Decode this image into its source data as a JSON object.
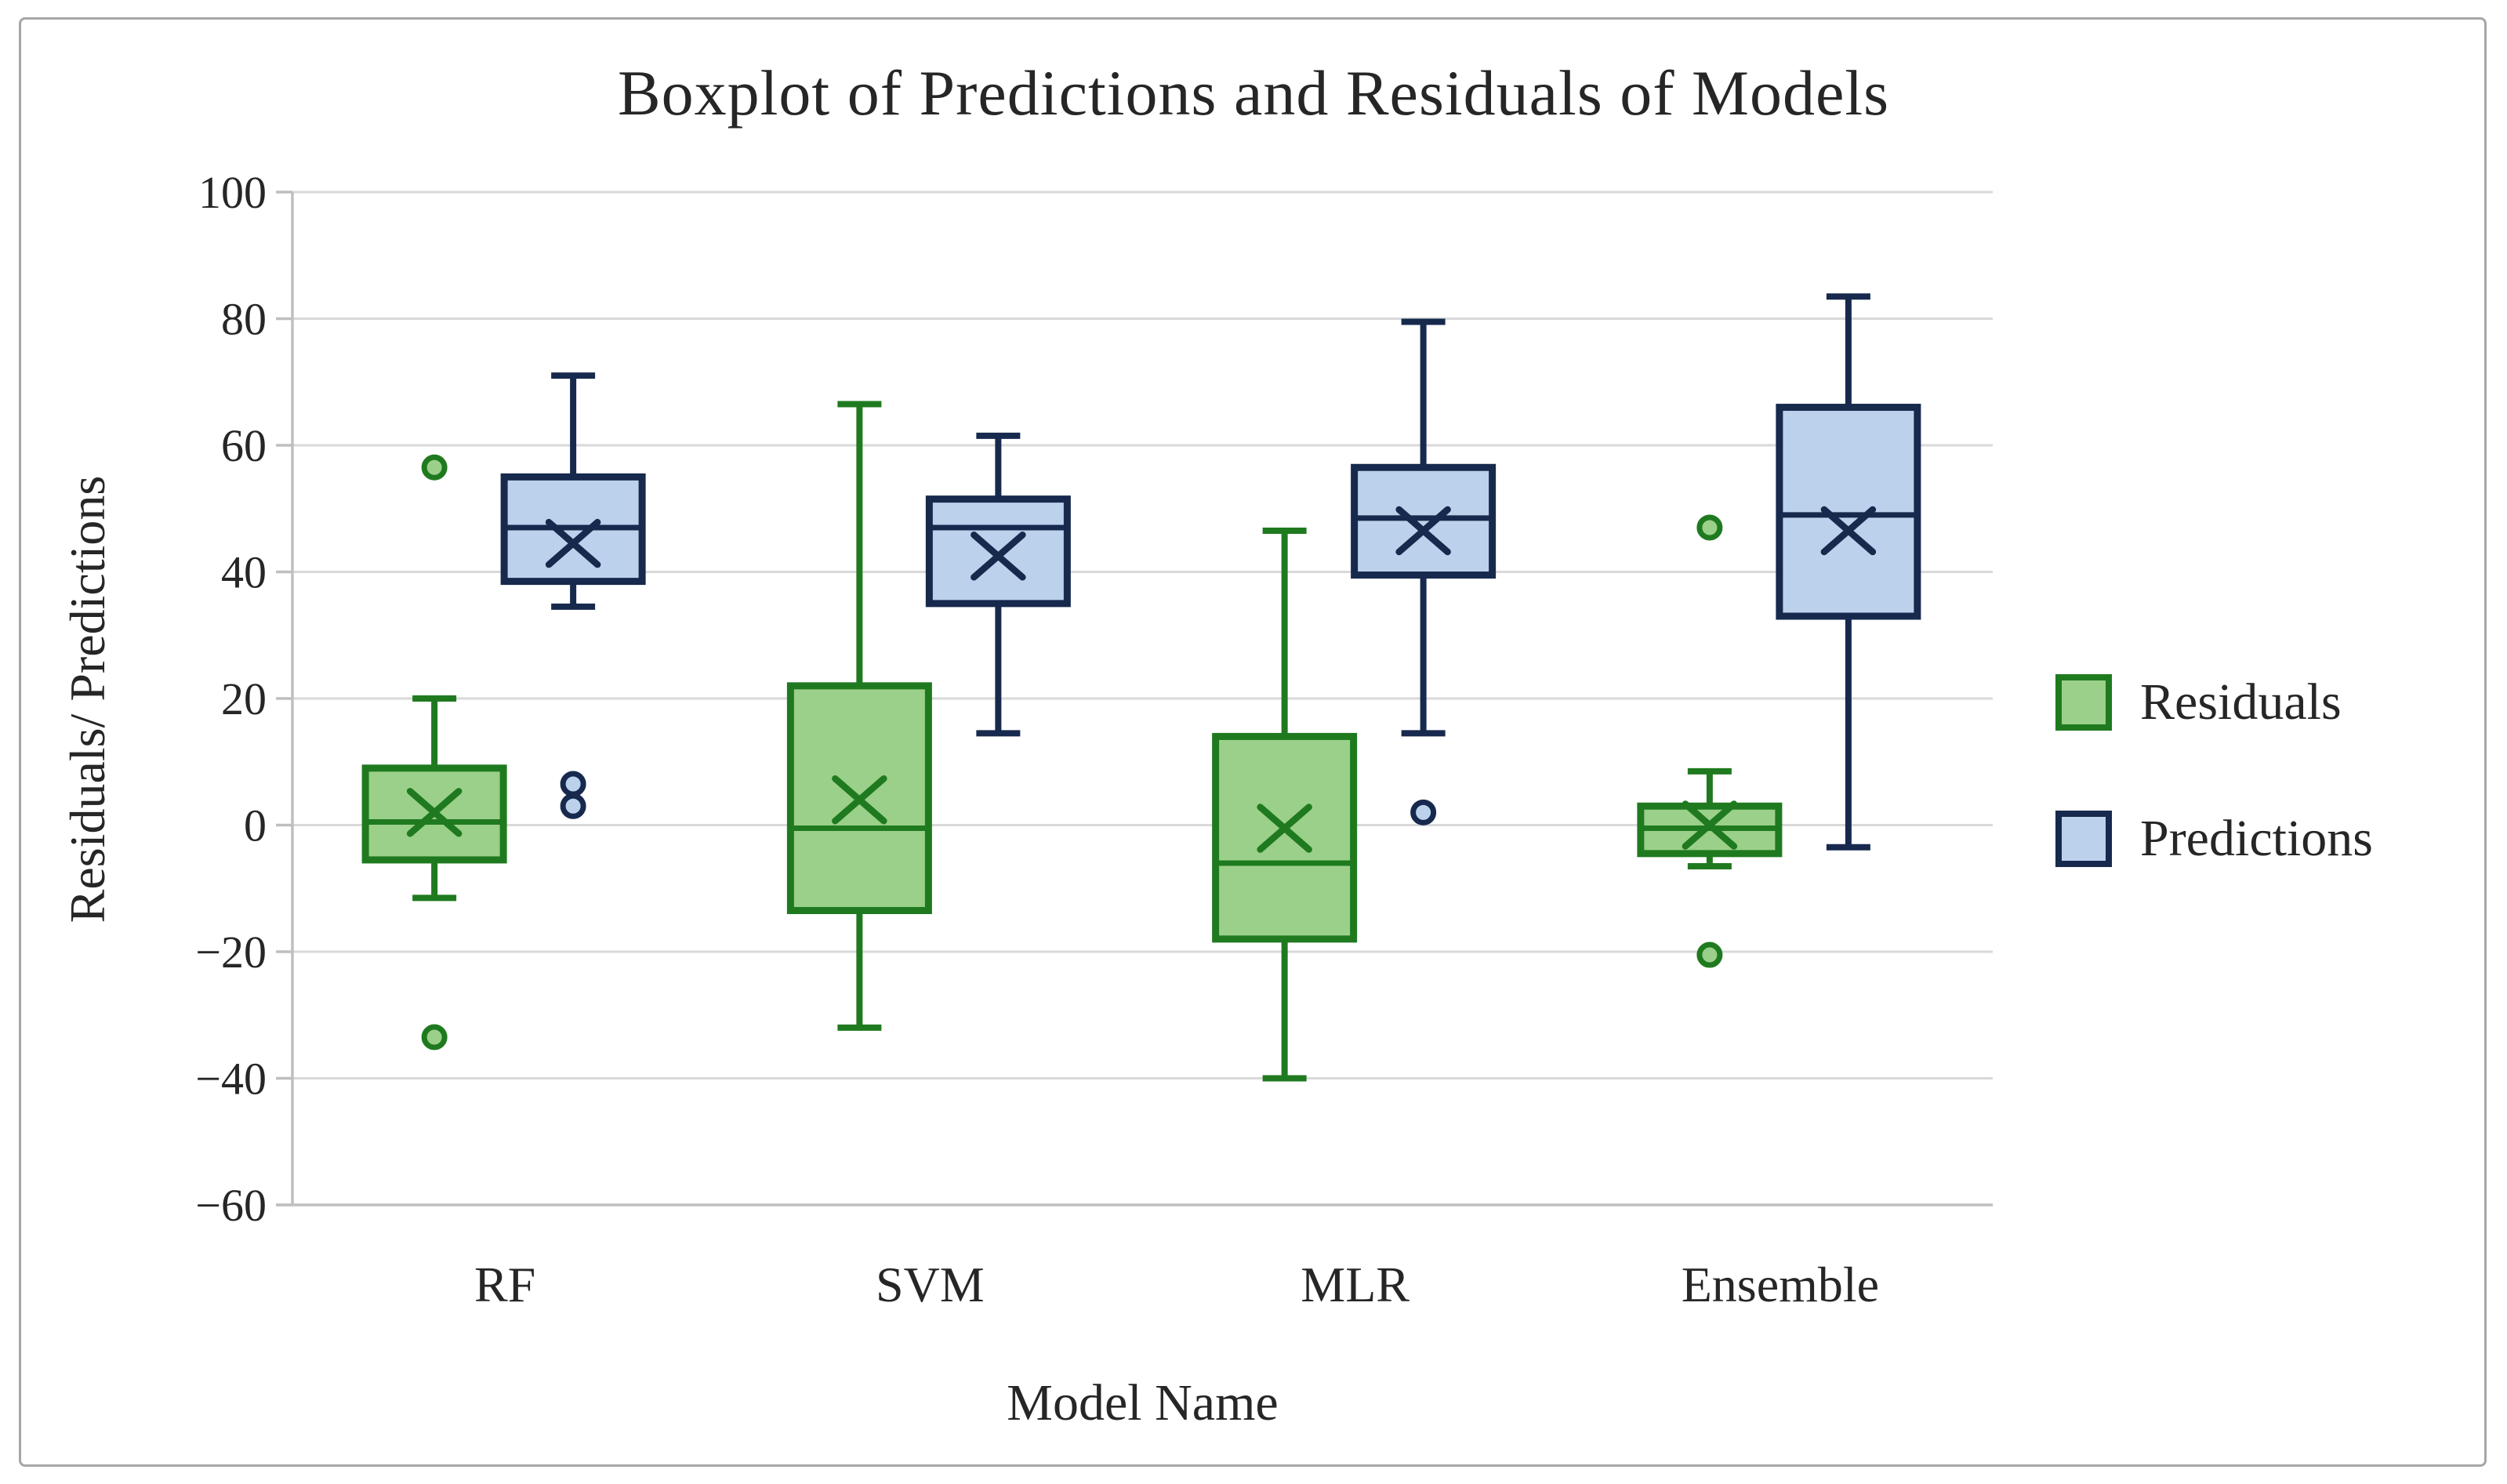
{
  "window": {
    "background": "#ffffff",
    "frame_color": "#a6a6a6"
  },
  "chart_data": {
    "type": "boxplot",
    "title": "Boxplot of Predictions and Residuals of Models",
    "xlabel": "Model Name",
    "ylabel": "Residuals/ Predictions",
    "categories": [
      "RF",
      "SVM",
      "MLR",
      "Ensemble"
    ],
    "y_axis": {
      "min": -60,
      "max": 100,
      "tick_step": 20,
      "ticks": [
        100,
        80,
        60,
        40,
        20,
        0,
        -20,
        -40,
        -60
      ]
    },
    "grid": true,
    "legend": {
      "position": "right",
      "entries": [
        "Residuals",
        "Predictions"
      ]
    },
    "colors": {
      "grid": "#d9d9d9",
      "axis": "#bfbfbf",
      "text": "#262626",
      "residuals_fill": "#9bd08a",
      "residuals_stroke": "#1f7a1f",
      "predictions_fill": "#bcd2ec",
      "predictions_stroke": "#17294d"
    },
    "series": [
      {
        "name": "Residuals",
        "fill": "#9bd08a",
        "stroke": "#1f7a1f",
        "boxes": [
          {
            "category": "RF",
            "whisker_low": -11.5,
            "q1": -5.5,
            "median": 0.5,
            "mean": 2,
            "q3": 9,
            "whisker_high": 20,
            "outliers": [
              56.5,
              -33.5
            ]
          },
          {
            "category": "SVM",
            "whisker_low": -32,
            "q1": -13.5,
            "median": -0.5,
            "mean": 4,
            "q3": 22,
            "whisker_high": 66.5,
            "outliers": []
          },
          {
            "category": "MLR",
            "whisker_low": -40,
            "q1": -18,
            "median": -6,
            "mean": -0.5,
            "q3": 14,
            "whisker_high": 46.5,
            "outliers": []
          },
          {
            "category": "Ensemble",
            "whisker_low": -6.5,
            "q1": -4.5,
            "median": -0.5,
            "mean": 0,
            "q3": 3,
            "whisker_high": 8.5,
            "outliers": [
              47,
              -20.5
            ]
          }
        ]
      },
      {
        "name": "Predictions",
        "fill": "#bcd2ec",
        "stroke": "#17294d",
        "boxes": [
          {
            "category": "RF",
            "whisker_low": 34.5,
            "q1": 38.5,
            "median": 47,
            "mean": 44.5,
            "q3": 55,
            "whisker_high": 71,
            "outliers": [
              6.5,
              3
            ]
          },
          {
            "category": "SVM",
            "whisker_low": 14.5,
            "q1": 35,
            "median": 47,
            "mean": 42.5,
            "q3": 51.5,
            "whisker_high": 61.5,
            "outliers": []
          },
          {
            "category": "MLR",
            "whisker_low": 14.5,
            "q1": 39.5,
            "median": 48.5,
            "mean": 46.5,
            "q3": 56.5,
            "whisker_high": 79.5,
            "outliers": [
              2
            ]
          },
          {
            "category": "Ensemble",
            "whisker_low": -3.5,
            "q1": 33,
            "median": 49,
            "mean": 46.5,
            "q3": 66,
            "whisker_high": 83.5,
            "outliers": []
          }
        ]
      }
    ]
  }
}
